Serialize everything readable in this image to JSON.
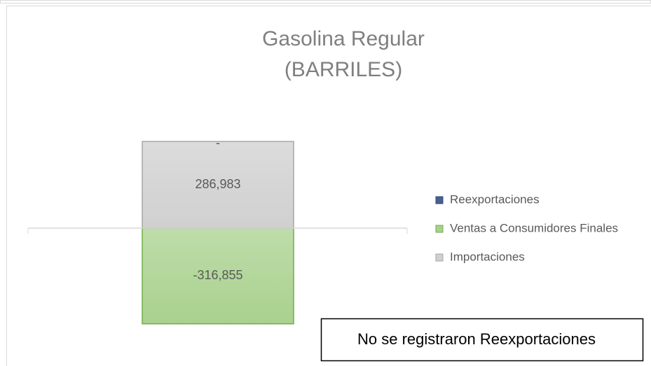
{
  "chart_data": {
    "type": "stacked_bar",
    "title": "Gasolina Regular",
    "subtitle": "(BARRILES)",
    "categories": [
      null
    ],
    "series": [
      {
        "name": "Importaciones",
        "color": "#d0d0d0",
        "values": [
          286983
        ],
        "value_labels": [
          "286,983"
        ]
      },
      {
        "name": "Ventas a Consumidores Finales",
        "color": "#a9d18e",
        "values": [
          -316855
        ],
        "value_labels": [
          "-316,855"
        ]
      },
      {
        "name": "Reexportaciones",
        "color": "#4a5f8a",
        "values": [
          0
        ],
        "value_labels": [
          "-"
        ]
      }
    ],
    "ylim": [
      -350000,
      350000
    ],
    "legend": "right",
    "annotation": "No se registraron Reexportaciones"
  }
}
